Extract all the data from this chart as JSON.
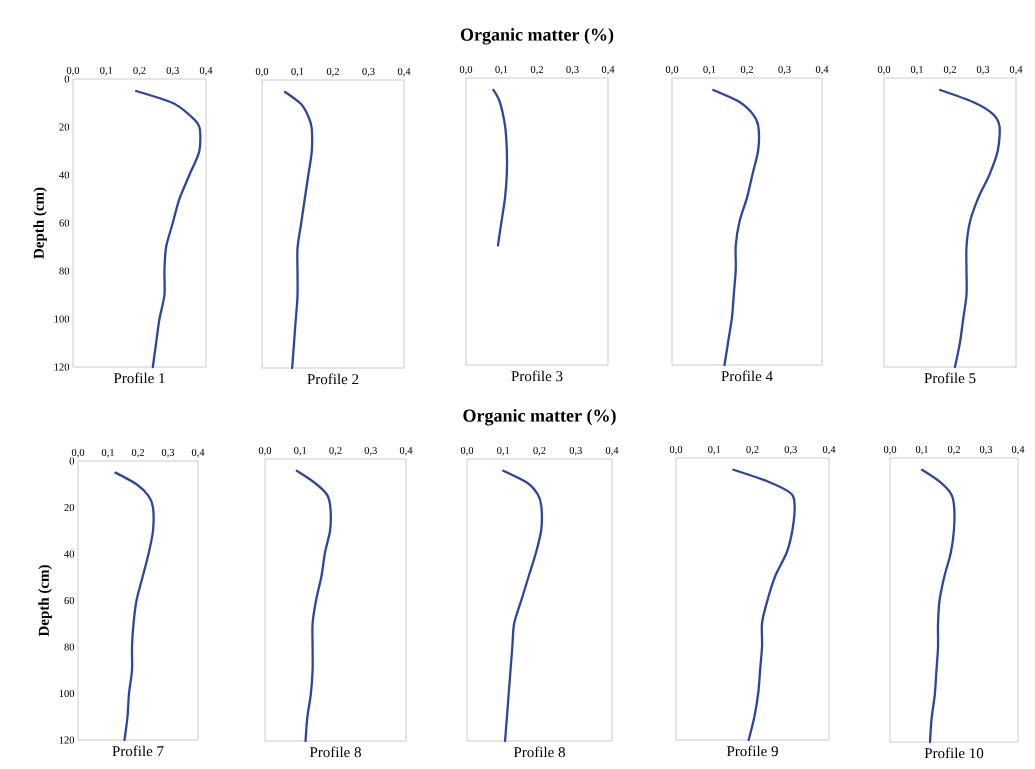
{
  "chart_data": [
    {
      "type": "line",
      "xlabel": "Profile 1",
      "ylabel": "Depth (cm)",
      "color": "#2e45a0",
      "x": [
        0.19,
        0.3,
        0.35,
        0.38,
        0.38,
        0.35,
        0.32,
        0.3,
        0.28,
        0.275,
        0.275,
        0.26,
        0.25,
        0.24
      ],
      "values": [
        5,
        10,
        15,
        20,
        30,
        40,
        50,
        60,
        70,
        80,
        90,
        100,
        110,
        120
      ],
      "xlim": [
        0,
        0.4
      ],
      "xticks": [
        {
          "value": 0,
          "label": "0,0"
        },
        {
          "value": 0.1,
          "label": "0,1"
        },
        {
          "value": 0.2,
          "label": "0,2"
        },
        {
          "value": 0.3,
          "label": "0,3"
        },
        {
          "value": 0.4,
          "label": "0,4"
        }
      ],
      "ylim": [
        120,
        0
      ],
      "yticks": [
        0,
        20,
        40,
        60,
        80,
        100,
        120
      ]
    },
    {
      "type": "line",
      "xlabel": "Profile 2",
      "color": "#2e45a0",
      "x": [
        0.065,
        0.11,
        0.13,
        0.14,
        0.14,
        0.13,
        0.12,
        0.11,
        0.1,
        0.1,
        0.1,
        0.095,
        0.09,
        0.085
      ],
      "values": [
        5,
        10,
        15,
        20,
        30,
        40,
        50,
        60,
        70,
        80,
        90,
        100,
        110,
        120
      ],
      "xlim": [
        0,
        0.4
      ],
      "xticks": [
        {
          "value": 0,
          "label": "0,0"
        },
        {
          "value": 0.1,
          "label": "0,1"
        },
        {
          "value": 0.2,
          "label": "0,2"
        },
        {
          "value": 0.3,
          "label": "0,3"
        },
        {
          "value": 0.4,
          "label": "0,4"
        }
      ],
      "ylim": [
        120,
        0
      ],
      "tick_labels": "x"
    },
    {
      "type": "line",
      "title": "Organic matter (%)",
      "xlabel": "Profile 3",
      "color": "#2e45a0",
      "x": [
        0.077,
        0.095,
        0.11,
        0.115,
        0.115,
        0.11,
        0.1,
        0.09
      ],
      "values": [
        5,
        10,
        20,
        30,
        40,
        50,
        60,
        70
      ],
      "xlim": [
        0,
        0.4
      ],
      "xticks": [
        {
          "value": 0,
          "label": "0,0"
        },
        {
          "value": 0.1,
          "label": "0,1"
        },
        {
          "value": 0.2,
          "label": "0,2"
        },
        {
          "value": 0.3,
          "label": "0,3"
        },
        {
          "value": 0.4,
          "label": "0,4"
        }
      ],
      "ylim": [
        120,
        0
      ],
      "tick_labels": "x"
    },
    {
      "type": "line",
      "xlabel": "Profile 4",
      "color": "#2e45a0",
      "x": [
        0.11,
        0.18,
        0.215,
        0.23,
        0.23,
        0.215,
        0.2,
        0.18,
        0.17,
        0.17,
        0.165,
        0.16,
        0.15,
        0.14
      ],
      "values": [
        5,
        10,
        15,
        20,
        30,
        40,
        50,
        60,
        70,
        80,
        90,
        100,
        110,
        120
      ],
      "xlim": [
        0,
        0.4
      ],
      "xticks": [
        {
          "value": 0,
          "label": "0,0"
        },
        {
          "value": 0.1,
          "label": "0,1"
        },
        {
          "value": 0.2,
          "label": "0,2"
        },
        {
          "value": 0.3,
          "label": "0,3"
        },
        {
          "value": 0.4,
          "label": "0,4"
        }
      ],
      "ylim": [
        120,
        0
      ],
      "tick_labels": "x"
    },
    {
      "type": "line",
      "xlabel": "Profile 5",
      "color": "#2e45a0",
      "x": [
        0.17,
        0.27,
        0.33,
        0.35,
        0.345,
        0.32,
        0.285,
        0.26,
        0.25,
        0.25,
        0.25,
        0.24,
        0.23,
        0.215
      ],
      "values": [
        5,
        10,
        15,
        20,
        30,
        40,
        50,
        60,
        70,
        80,
        90,
        100,
        110,
        120
      ],
      "xlim": [
        0,
        0.4
      ],
      "xticks": [
        {
          "value": 0,
          "label": "0,0"
        },
        {
          "value": 0.1,
          "label": "0,1"
        },
        {
          "value": 0.2,
          "label": "0,2"
        },
        {
          "value": 0.3,
          "label": "0,3"
        },
        {
          "value": 0.4,
          "label": "0,4"
        }
      ],
      "ylim": [
        120,
        0
      ],
      "tick_labels": "x"
    },
    {
      "type": "line",
      "xlabel": "Profile 7",
      "ylabel": "Depth (cm)",
      "color": "#2e45a0",
      "x": [
        0.125,
        0.195,
        0.235,
        0.25,
        0.25,
        0.235,
        0.215,
        0.195,
        0.185,
        0.18,
        0.18,
        0.17,
        0.165,
        0.155
      ],
      "values": [
        5,
        10,
        15,
        20,
        30,
        40,
        50,
        60,
        70,
        80,
        90,
        100,
        110,
        120
      ],
      "xlim": [
        0,
        0.4
      ],
      "xticks": [
        {
          "value": 0,
          "label": "0,0"
        },
        {
          "value": 0.1,
          "label": "0,1"
        },
        {
          "value": 0.2,
          "label": "0,2"
        },
        {
          "value": 0.3,
          "label": "0,3"
        },
        {
          "value": 0.4,
          "label": "0,4"
        }
      ],
      "ylim": [
        120,
        0
      ],
      "yticks": [
        0,
        20,
        40,
        60,
        80,
        100,
        120
      ]
    },
    {
      "type": "line",
      "xlabel": "Profile 8",
      "color": "#2e45a0",
      "x": [
        0.09,
        0.14,
        0.175,
        0.185,
        0.185,
        0.17,
        0.16,
        0.145,
        0.135,
        0.135,
        0.135,
        0.13,
        0.12,
        0.115
      ],
      "values": [
        5,
        10,
        15,
        20,
        30,
        40,
        50,
        60,
        70,
        80,
        90,
        100,
        110,
        120
      ],
      "xlim": [
        0,
        0.4
      ],
      "xticks": [
        {
          "value": 0,
          "label": "0,0"
        },
        {
          "value": 0.1,
          "label": "0,1"
        },
        {
          "value": 0.2,
          "label": "0,2"
        },
        {
          "value": 0.3,
          "label": "0,3"
        },
        {
          "value": 0.4,
          "label": "0,4"
        }
      ],
      "ylim": [
        120,
        0
      ],
      "tick_labels": "x"
    },
    {
      "type": "line",
      "title": "Organic matter (%)",
      "xlabel": "Profile 8",
      "color": "#2e45a0",
      "x": [
        0.1,
        0.165,
        0.195,
        0.205,
        0.205,
        0.19,
        0.17,
        0.15,
        0.13,
        0.125,
        0.12,
        0.115,
        0.11,
        0.105
      ],
      "values": [
        5,
        10,
        15,
        20,
        30,
        40,
        50,
        60,
        70,
        80,
        90,
        100,
        110,
        120
      ],
      "xlim": [
        0,
        0.4
      ],
      "xticks": [
        {
          "value": 0,
          "label": "0,0"
        },
        {
          "value": 0.1,
          "label": "0,1"
        },
        {
          "value": 0.2,
          "label": "0,2"
        },
        {
          "value": 0.3,
          "label": "0,3"
        },
        {
          "value": 0.4,
          "label": "0,4"
        }
      ],
      "ylim": [
        120,
        0
      ],
      "tick_labels": "x"
    },
    {
      "type": "line",
      "xlabel": "Profile 9",
      "color": "#2e45a0",
      "x": [
        0.15,
        0.24,
        0.3,
        0.31,
        0.305,
        0.29,
        0.26,
        0.24,
        0.225,
        0.225,
        0.22,
        0.215,
        0.205,
        0.19
      ],
      "values": [
        5,
        10,
        15,
        20,
        30,
        40,
        50,
        60,
        70,
        80,
        90,
        100,
        110,
        120
      ],
      "xlim": [
        0,
        0.4
      ],
      "xticks": [
        {
          "value": 0,
          "label": "0,0"
        },
        {
          "value": 0.1,
          "label": "0,1"
        },
        {
          "value": 0.2,
          "label": "0,2"
        },
        {
          "value": 0.3,
          "label": "0,3"
        },
        {
          "value": 0.4,
          "label": "0,4"
        }
      ],
      "ylim": [
        120,
        0
      ],
      "tick_labels": "x"
    },
    {
      "type": "line",
      "xlabel": "Profile 10",
      "color": "#2e45a0",
      "x": [
        0.1,
        0.155,
        0.19,
        0.2,
        0.2,
        0.19,
        0.17,
        0.155,
        0.15,
        0.15,
        0.145,
        0.14,
        0.13,
        0.125
      ],
      "values": [
        5,
        10,
        15,
        20,
        30,
        40,
        50,
        60,
        70,
        80,
        90,
        100,
        110,
        120
      ],
      "xlim": [
        0,
        0.4
      ],
      "xticks": [
        {
          "value": 0,
          "label": "0,0"
        },
        {
          "value": 0.1,
          "label": "0,1"
        },
        {
          "value": 0.2,
          "label": "0,2"
        },
        {
          "value": 0.3,
          "label": "0,3"
        },
        {
          "value": 0.4,
          "label": "0,4"
        }
      ],
      "ylim": [
        120,
        0
      ],
      "tick_labels": "x"
    }
  ]
}
